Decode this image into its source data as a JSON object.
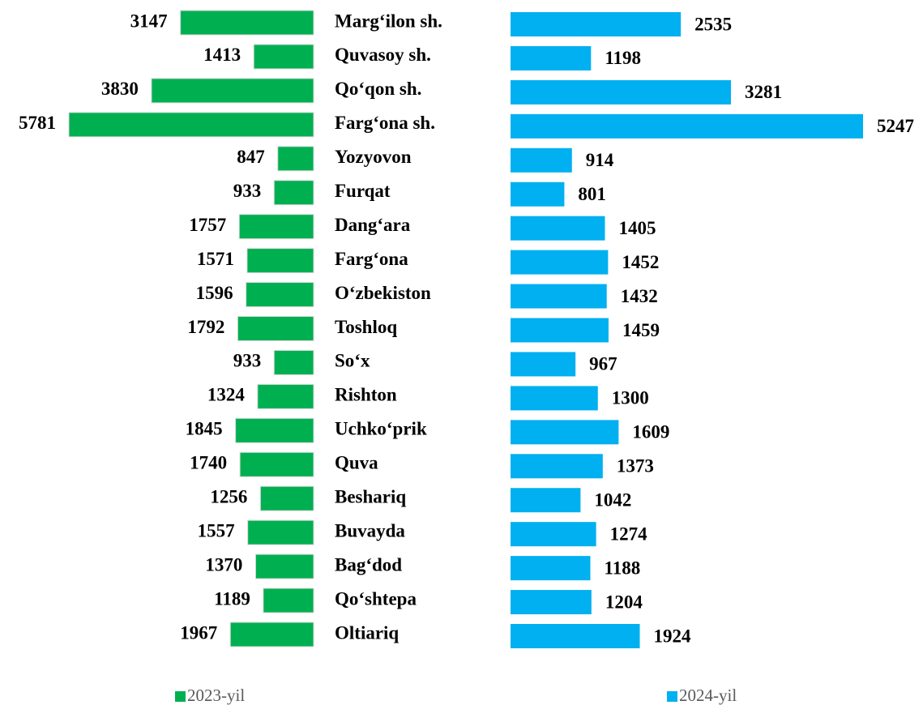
{
  "chart_data": {
    "type": "butterfly-bar",
    "categories": [
      "Marg‘ilon sh.",
      "Quvasoy sh.",
      "Qo‘qon sh.",
      "Farg‘ona sh.",
      "Yozyovon",
      "Furqat",
      "Dang‘ara",
      "Farg‘ona",
      "O‘zbekiston",
      "Toshloq",
      "So‘x",
      "Rishton",
      "Uchko‘prik",
      "Quva",
      "Beshariq",
      "Buvayda",
      "Bag‘dod",
      "Qo‘shtepa",
      "Oltiariq"
    ],
    "series": [
      {
        "name": "2023-yil",
        "color": "#00b050",
        "values": [
          3147,
          1413,
          3830,
          5781,
          847,
          933,
          1757,
          1571,
          1596,
          1792,
          933,
          1324,
          1845,
          1740,
          1256,
          1557,
          1370,
          1189,
          1967
        ]
      },
      {
        "name": "2024-yil",
        "color": "#00b0f0",
        "values": [
          2535,
          1198,
          3281,
          5247,
          914,
          801,
          1405,
          1452,
          1432,
          1459,
          967,
          1300,
          1609,
          1373,
          1042,
          1274,
          1188,
          1204,
          1924
        ]
      }
    ],
    "legend": "bottom"
  }
}
